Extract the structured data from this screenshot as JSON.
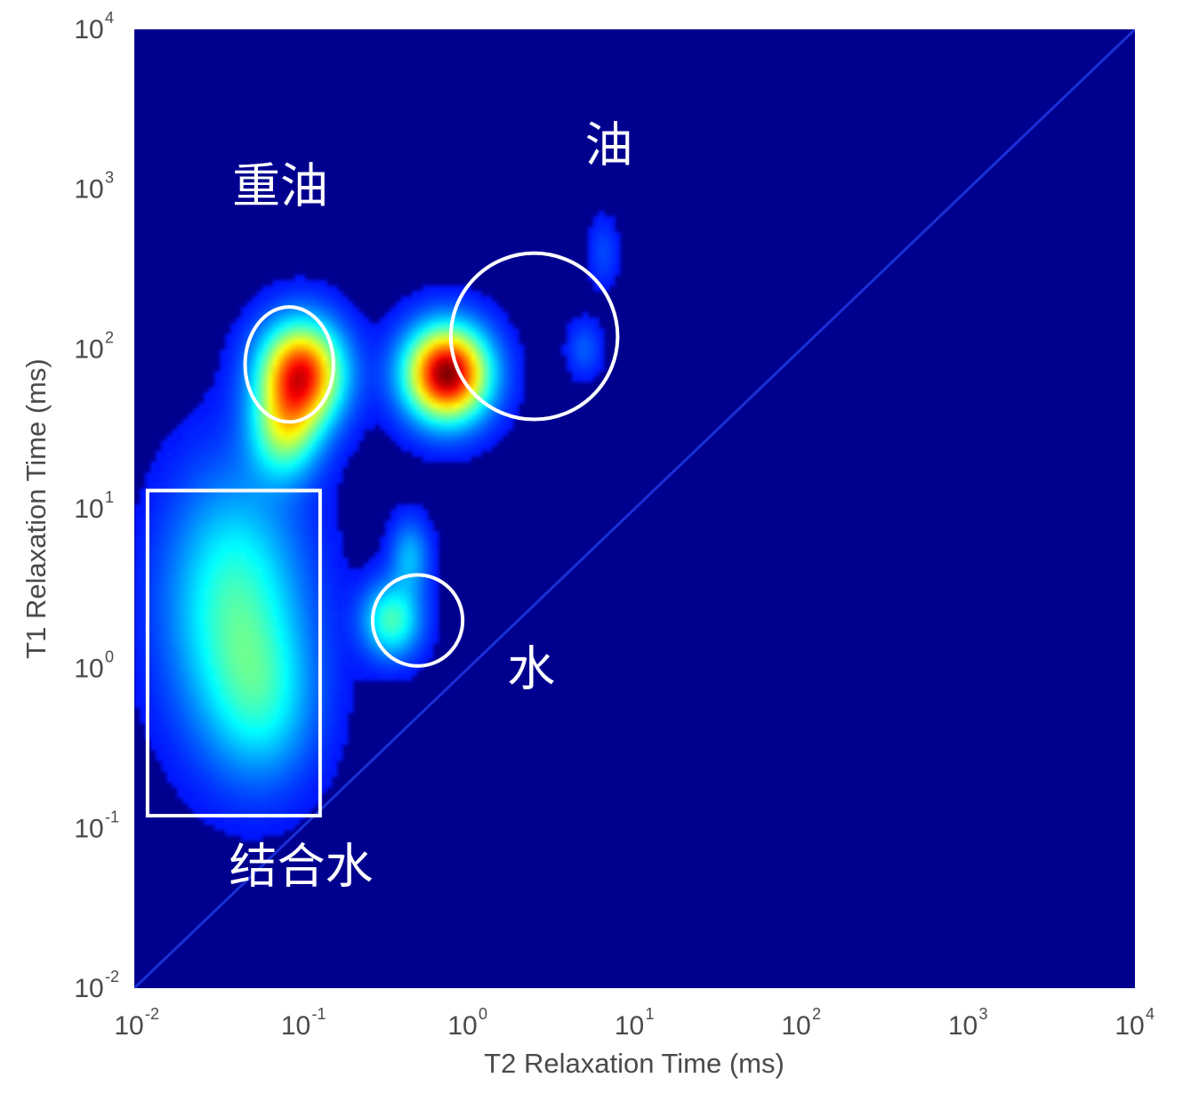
{
  "chart_data": {
    "type": "heatmap",
    "title": "",
    "xlabel": "T2 Relaxation Time (ms)",
    "ylabel": "T1 Relaxation Time (ms)",
    "x_scale": "log",
    "y_scale": "log",
    "xlim": [
      0.01,
      10000
    ],
    "ylim": [
      0.01,
      10000
    ],
    "x_ticks": [
      {
        "value": 0.01,
        "base": "10",
        "exp": "-2"
      },
      {
        "value": 0.1,
        "base": "10",
        "exp": "-1"
      },
      {
        "value": 1,
        "base": "10",
        "exp": "0"
      },
      {
        "value": 10,
        "base": "10",
        "exp": "1"
      },
      {
        "value": 100,
        "base": "10",
        "exp": "2"
      },
      {
        "value": 1000,
        "base": "10",
        "exp": "3"
      },
      {
        "value": 10000,
        "base": "10",
        "exp": "4"
      }
    ],
    "y_ticks": [
      {
        "value": 0.01,
        "base": "10",
        "exp": "-2"
      },
      {
        "value": 0.1,
        "base": "10",
        "exp": "-1"
      },
      {
        "value": 1,
        "base": "10",
        "exp": "0"
      },
      {
        "value": 10,
        "base": "10",
        "exp": "1"
      },
      {
        "value": 100,
        "base": "10",
        "exp": "2"
      },
      {
        "value": 1000,
        "base": "10",
        "exp": "3"
      },
      {
        "value": 10000,
        "base": "10",
        "exp": "4"
      }
    ],
    "colormap": "jet",
    "background_color": "#00008f",
    "diagonal": {
      "from": [
        0.01,
        0.01
      ],
      "to": [
        10000,
        10000
      ],
      "color": "#1a2fd6"
    },
    "peaks": [
      {
        "t2": 0.1,
        "t1": 70,
        "intensity": 0.85,
        "spread_x": 0.17,
        "spread_y": 0.22
      },
      {
        "t2": 0.08,
        "t1": 30,
        "intensity": 0.38,
        "spread_x": 0.14,
        "spread_y": 0.2
      },
      {
        "t2": 0.75,
        "t1": 70,
        "intensity": 1.0,
        "spread_x": 0.17,
        "spread_y": 0.2
      },
      {
        "t2": 5,
        "t1": 100,
        "intensity": 0.1,
        "spread_x": 0.07,
        "spread_y": 0.12
      },
      {
        "t2": 6.5,
        "t1": 400,
        "intensity": 0.08,
        "spread_x": 0.06,
        "spread_y": 0.15
      },
      {
        "t2": 0.04,
        "t1": 2.5,
        "intensity": 0.35,
        "spread_x": 0.28,
        "spread_y": 0.55
      },
      {
        "t2": 0.06,
        "t1": 0.6,
        "intensity": 0.2,
        "spread_x": 0.22,
        "spread_y": 0.35
      },
      {
        "t2": 0.35,
        "t1": 2,
        "intensity": 0.36,
        "spread_x": 0.12,
        "spread_y": 0.16
      },
      {
        "t2": 0.45,
        "t1": 5,
        "intensity": 0.2,
        "spread_x": 0.08,
        "spread_y": 0.16
      }
    ],
    "annotations": [
      {
        "text": "重油",
        "x": 0.075,
        "y": 1000,
        "shape": "ellipse",
        "center": [
          0.085,
          80
        ],
        "rx_decades": 0.53,
        "ry_decades": 0.72
      },
      {
        "text": "油",
        "x": 7,
        "y": 1800,
        "shape": "ellipse",
        "center": [
          2.5,
          120
        ],
        "rx_decades": 1.0,
        "ry_decades": 1.04
      },
      {
        "text": "水",
        "x": 2.4,
        "y": 0.95,
        "shape": "ellipse",
        "center": [
          0.5,
          2
        ],
        "rx_decades": 0.54,
        "ry_decades": 0.57
      },
      {
        "text": "结合水",
        "x": 0.1,
        "y": 0.055,
        "shape": "rect",
        "x_range": [
          0.012,
          0.13
        ],
        "y_range": [
          0.12,
          13
        ]
      }
    ]
  }
}
